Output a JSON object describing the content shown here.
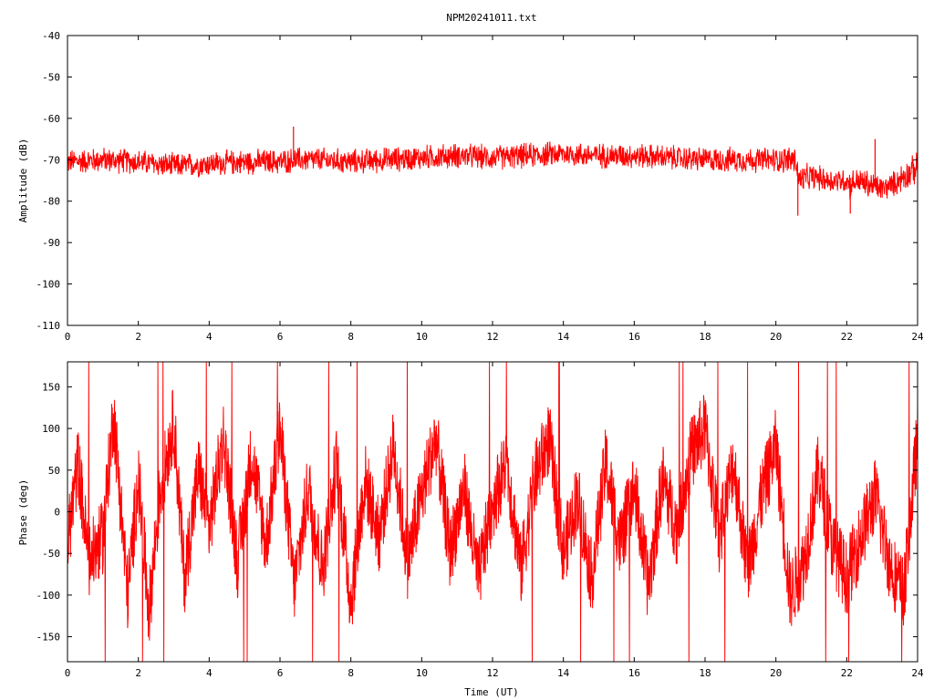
{
  "figure": {
    "title": "NPM20241011.txt"
  },
  "chart_data": [
    {
      "type": "line",
      "ylabel": "Amplitude (dB)",
      "xlabel": "",
      "xlim": [
        0,
        24
      ],
      "ylim": [
        -110,
        -40
      ],
      "x_ticks": [
        0,
        2,
        4,
        6,
        8,
        10,
        12,
        14,
        16,
        18,
        20,
        22,
        24
      ],
      "x_tick_labels": [
        "0",
        "2",
        "4",
        "6",
        "8",
        "10",
        "12",
        "14",
        "16",
        "18",
        "20",
        "22",
        "24"
      ],
      "y_ticks": [
        -110,
        -100,
        -90,
        -80,
        -70,
        -60,
        -50,
        -40
      ],
      "y_tick_labels": [
        "-110",
        "-100",
        "-90",
        "-80",
        "-70",
        "-60",
        "-50",
        "-40"
      ],
      "grid": false,
      "color": "#ff0000",
      "series": [
        {
          "name": "",
          "x": [
            0,
            1,
            2,
            3,
            4,
            5,
            6,
            6.5,
            7,
            8,
            9,
            10,
            11,
            12,
            13,
            14,
            15,
            16,
            17,
            18,
            19,
            20,
            20.55,
            20.65,
            21,
            21.5,
            22,
            22.1,
            22.3,
            22.6,
            23,
            23.3,
            23.6,
            24
          ],
          "center": [
            -70.5,
            -70,
            -70.5,
            -71.5,
            -71,
            -70.5,
            -70.5,
            -70,
            -70,
            -70.5,
            -70,
            -69.5,
            -69,
            -69.5,
            -69,
            -68.5,
            -69,
            -69,
            -69.5,
            -70,
            -70,
            -70,
            -70,
            -75,
            -74,
            -75,
            -75,
            -76,
            -75,
            -76,
            -77,
            -76,
            -74,
            -72
          ],
          "spread": [
            2.5,
            2.5,
            2.5,
            2.5,
            2.5,
            2.5,
            2.5,
            2.5,
            2.5,
            2.5,
            2.5,
            2.5,
            2.5,
            2.5,
            2.5,
            2.5,
            2.5,
            2.5,
            2.5,
            2.5,
            2.5,
            2.5,
            3,
            3,
            2.5,
            2.5,
            2.5,
            3,
            2.5,
            3,
            2.5,
            2.5,
            3,
            3
          ]
        }
      ],
      "spikes": [
        {
          "x": 6.38,
          "y": -62
        },
        {
          "x": 20.62,
          "y": -83.5
        },
        {
          "x": 22.1,
          "y": -83
        },
        {
          "x": 22.8,
          "y": -65
        }
      ]
    },
    {
      "type": "line",
      "ylabel": "Phase (deg)",
      "xlabel": "Time (UT)",
      "xlim": [
        0,
        24
      ],
      "ylim": [
        -180,
        180
      ],
      "x_ticks": [
        0,
        2,
        4,
        6,
        8,
        10,
        12,
        14,
        16,
        18,
        20,
        22,
        24
      ],
      "x_tick_labels": [
        "0",
        "2",
        "4",
        "6",
        "8",
        "10",
        "12",
        "14",
        "16",
        "18",
        "20",
        "22",
        "24"
      ],
      "y_ticks": [
        -150,
        -100,
        -50,
        0,
        50,
        100,
        150
      ],
      "y_tick_labels": [
        "-150",
        "-100",
        "-50",
        "0",
        "50",
        "100",
        "150"
      ],
      "grid": false,
      "color": "#ff0000",
      "series": [
        {
          "name": "",
          "x": [
            0,
            0.3,
            0.6,
            1.0,
            1.3,
            1.7,
            2.0,
            2.3,
            2.6,
            3.0,
            3.3,
            3.7,
            4.0,
            4.4,
            4.8,
            5.2,
            5.6,
            6.0,
            6.4,
            6.8,
            7.2,
            7.6,
            8.0,
            8.4,
            8.8,
            9.2,
            9.6,
            10.0,
            10.4,
            10.8,
            11.2,
            11.6,
            12.0,
            12.4,
            12.8,
            13.2,
            13.6,
            14.0,
            14.4,
            14.8,
            15.2,
            15.6,
            16.0,
            16.4,
            16.8,
            17.2,
            17.6,
            18.0,
            18.4,
            18.8,
            19.2,
            19.6,
            20.0,
            20.4,
            20.8,
            21.2,
            21.6,
            22.0,
            22.4,
            22.8,
            23.2,
            23.6,
            24.0
          ],
          "y": [
            -40,
            60,
            -60,
            -30,
            120,
            -100,
            40,
            -120,
            20,
            110,
            -80,
            50,
            -20,
            90,
            -60,
            70,
            -40,
            100,
            -90,
            30,
            -70,
            60,
            -110,
            40,
            -30,
            80,
            -60,
            20,
            90,
            -50,
            30,
            -80,
            10,
            60,
            -70,
            40,
            90,
            -50,
            20,
            -80,
            60,
            -40,
            30,
            -90,
            40,
            -20,
            70,
            100,
            -30,
            60,
            -70,
            20,
            80,
            -100,
            -60,
            50,
            -40,
            -80,
            -30,
            20,
            -60,
            -100,
            90
          ]
        }
      ],
      "noise_amplitude": 45,
      "wrap_prob": 0.012
    }
  ]
}
